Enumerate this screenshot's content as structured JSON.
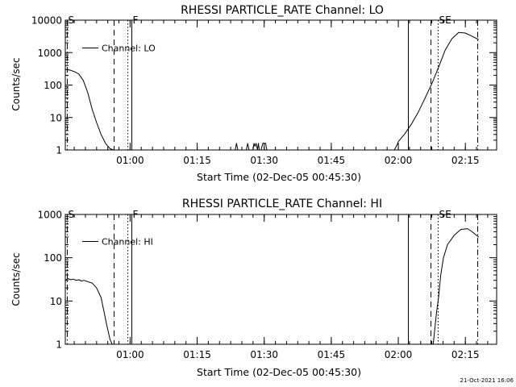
{
  "figure": {
    "timestamp": "21-Oct-2021 16:06"
  },
  "chart_data": [
    {
      "type": "line",
      "title": "RHESSI PARTICLE_RATE Channel: LO",
      "xlabel": "Start Time (02-Dec-05 00:45:30)",
      "ylabel": "Counts/sec",
      "yscale": "log",
      "xlim": [
        0,
        96.5
      ],
      "ylim": [
        1,
        10000
      ],
      "x_tick_labels": [
        "01:00",
        "01:15",
        "01:30",
        "01:45",
        "02:00",
        "02:15"
      ],
      "x_ticks": [
        14.5,
        29.5,
        44.5,
        59.5,
        74.5,
        89.5
      ],
      "y_tick_labels": [
        "1",
        "10",
        "100",
        "1000",
        "10000"
      ],
      "y_ticks": [
        1,
        10,
        100,
        1000,
        10000
      ],
      "legend": {
        "position": "top-left",
        "entries": [
          "Channel: LO"
        ]
      },
      "markers": [
        {
          "x": 0.3,
          "label": "S",
          "style": "dash-dot"
        },
        {
          "x": 10.8,
          "label": "",
          "style": "dashed"
        },
        {
          "x": 13.8,
          "label": "",
          "style": "dotted"
        },
        {
          "x": 14.8,
          "label": "F",
          "style": "solid"
        },
        {
          "x": 76.6,
          "label": "",
          "style": "solid"
        },
        {
          "x": 81.7,
          "label": "",
          "style": "dashed"
        },
        {
          "x": 83.3,
          "label": "SE",
          "style": "dotted"
        },
        {
          "x": 92.2,
          "label": "",
          "style": "dash-dot"
        }
      ],
      "series": [
        {
          "segments": [
            {
              "x": [
                0,
                1,
                2,
                3,
                4,
                5,
                6,
                7,
                8,
                9,
                10,
                10.8
              ],
              "y": [
                300,
                290,
                260,
                220,
                140,
                60,
                18,
                7,
                3,
                1.6,
                1.1,
                1
              ]
            },
            {
              "x": [
                38,
                38.3,
                38.6,
                40.5,
                40.8,
                41.1,
                42,
                42.2,
                42.4,
                42.7,
                43,
                43.2,
                43.4,
                43.8,
                44.2,
                44.5,
                44.8,
                45.1
              ],
              "y": [
                1,
                1.6,
                1,
                1,
                1.6,
                1,
                1,
                1.6,
                1.3,
                1.6,
                1,
                1.6,
                1,
                1,
                1.6,
                1.6,
                1.6,
                1
              ]
            },
            {
              "x": [
                73.6,
                74.3,
                74.5,
                76,
                77.5,
                79,
                80.5,
                82,
                83.5,
                85,
                86.5,
                88,
                89.5,
                91,
                92.5
              ],
              "y": [
                1,
                1.5,
                1.8,
                3.2,
                6.5,
                15,
                40,
                110,
                350,
                1200,
                2700,
                4200,
                4000,
                3200,
                2500
              ]
            }
          ]
        }
      ]
    },
    {
      "type": "line",
      "title": "RHESSI PARTICLE_RATE Channel: HI",
      "xlabel": "Start Time (02-Dec-05 00:45:30)",
      "ylabel": "Counts/sec",
      "yscale": "log",
      "xlim": [
        0,
        96.5
      ],
      "ylim": [
        1,
        1000
      ],
      "x_tick_labels": [
        "01:00",
        "01:15",
        "01:30",
        "01:45",
        "02:00",
        "02:15"
      ],
      "x_ticks": [
        14.5,
        29.5,
        44.5,
        59.5,
        74.5,
        89.5
      ],
      "y_tick_labels": [
        "1",
        "10",
        "100",
        "1000"
      ],
      "y_ticks": [
        1,
        10,
        100,
        1000
      ],
      "legend": {
        "position": "top-left",
        "entries": [
          "Channel: HI"
        ]
      },
      "markers": [
        {
          "x": 0.3,
          "label": "S",
          "style": "dash-dot"
        },
        {
          "x": 10.8,
          "label": "",
          "style": "dashed"
        },
        {
          "x": 13.8,
          "label": "",
          "style": "dotted"
        },
        {
          "x": 14.8,
          "label": "F",
          "style": "solid"
        },
        {
          "x": 76.6,
          "label": "",
          "style": "solid"
        },
        {
          "x": 81.7,
          "label": "",
          "style": "dashed"
        },
        {
          "x": 83.3,
          "label": "SE",
          "style": "dotted"
        },
        {
          "x": 92.2,
          "label": "",
          "style": "dash-dot"
        }
      ],
      "series": [
        {
          "segments": [
            {
              "x": [
                0,
                0.6,
                1.2,
                1.8,
                2.4,
                3,
                3.6,
                4.2,
                5,
                6,
                7,
                8,
                8.6,
                9.2,
                10,
                10.5
              ],
              "y": [
                30,
                33,
                31,
                32,
                30,
                31,
                29,
                30,
                28,
                26,
                20,
                12,
                6,
                3,
                1.3,
                1
              ]
            },
            {
              "x": [
                82.3,
                83,
                83.5,
                84,
                84.6,
                85.5,
                87,
                88.5,
                90,
                91,
                92.5
              ],
              "y": [
                1,
                5,
                12,
                40,
                100,
                200,
                330,
                450,
                470,
                400,
                300
              ]
            }
          ]
        }
      ]
    }
  ]
}
